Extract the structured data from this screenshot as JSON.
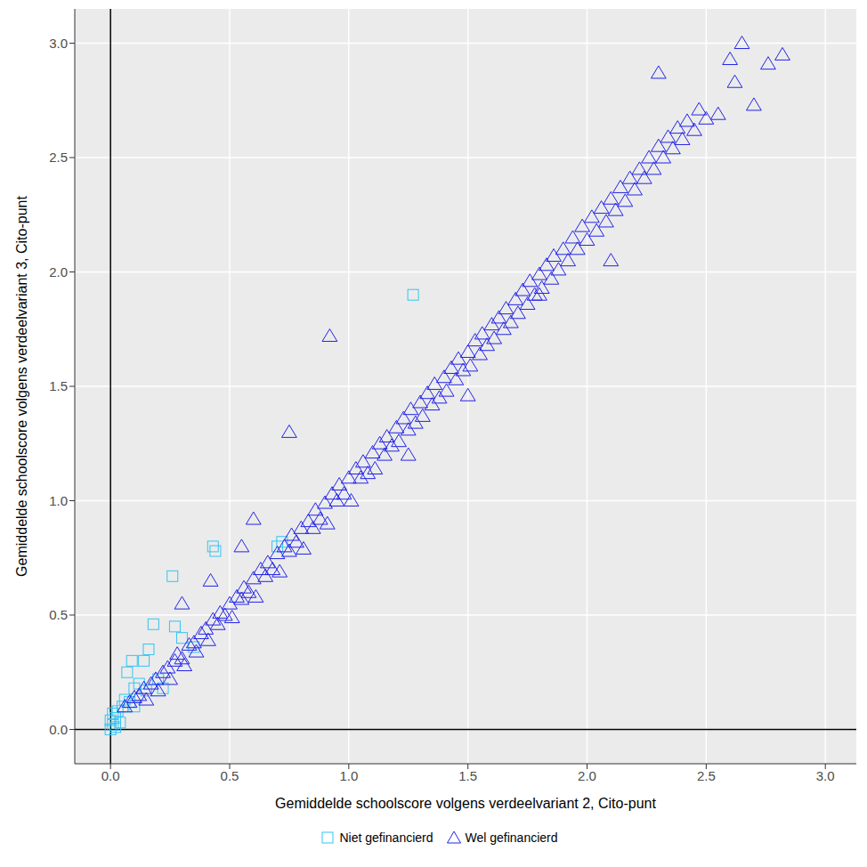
{
  "chart_data": {
    "type": "scatter",
    "x_label": "Gemiddelde schoolscore volgens verdeelvariant 2, Cito-punt",
    "y_label": "Gemiddelde schoolscore volgens verdeelvariant 3, Cito-punt",
    "xlim": [
      -0.15,
      3.13
    ],
    "ylim": [
      -0.15,
      3.15
    ],
    "xticks": [
      {
        "value": 0,
        "label": "0.0"
      },
      {
        "value": 0.5,
        "label": "0.5"
      },
      {
        "value": 1,
        "label": "1.0"
      },
      {
        "value": 1.5,
        "label": "1.5"
      },
      {
        "value": 2,
        "label": "2.0"
      },
      {
        "value": 2.5,
        "label": "2.5"
      },
      {
        "value": 3,
        "label": "3.0"
      }
    ],
    "yticks": [
      {
        "value": 0,
        "label": "0.0"
      },
      {
        "value": 0.5,
        "label": "0.5"
      },
      {
        "value": 1,
        "label": "1.0"
      },
      {
        "value": 1.5,
        "label": "1.5"
      },
      {
        "value": 2,
        "label": "2.0"
      },
      {
        "value": 2.5,
        "label": "2.5"
      },
      {
        "value": 3,
        "label": "3.0"
      }
    ],
    "grid": true,
    "legend": "bottom",
    "reference_lines": {
      "x": [
        0
      ],
      "y": [
        0
      ]
    },
    "series": [
      {
        "name": "Niet gefinancierd",
        "color": "#35C4F2",
        "marker": "square",
        "x": [
          0.0,
          0.01,
          0.02,
          0.03,
          0.05,
          0.04,
          0.06,
          0.08,
          0.1,
          0.12,
          0.14,
          0.16,
          0.18,
          0.2,
          0.22,
          0.26,
          0.27,
          0.3,
          0.35,
          0.43,
          0.44,
          0.7,
          0.72,
          1.27,
          0.02,
          0.0,
          0.01,
          0.07,
          0.09,
          0.1,
          0.15
        ],
        "y": [
          0.0,
          0.02,
          0.05,
          0.08,
          0.1,
          0.03,
          0.13,
          0.12,
          0.18,
          0.2,
          0.3,
          0.35,
          0.46,
          0.22,
          0.18,
          0.67,
          0.45,
          0.4,
          0.36,
          0.8,
          0.78,
          0.8,
          0.82,
          1.9,
          0.01,
          0.04,
          0.07,
          0.25,
          0.3,
          0.1,
          0.17
        ]
      },
      {
        "name": "Wel gefinancierd",
        "color": "#2424E8",
        "marker": "triangle",
        "x": [
          0.06,
          0.08,
          0.1,
          0.12,
          0.14,
          0.15,
          0.17,
          0.19,
          0.2,
          0.22,
          0.24,
          0.25,
          0.27,
          0.28,
          0.3,
          0.31,
          0.33,
          0.35,
          0.36,
          0.38,
          0.4,
          0.41,
          0.43,
          0.45,
          0.46,
          0.48,
          0.5,
          0.51,
          0.53,
          0.55,
          0.56,
          0.58,
          0.6,
          0.61,
          0.63,
          0.65,
          0.66,
          0.68,
          0.7,
          0.71,
          0.73,
          0.75,
          0.76,
          0.78,
          0.8,
          0.81,
          0.83,
          0.85,
          0.86,
          0.88,
          0.9,
          0.91,
          0.93,
          0.95,
          0.96,
          0.98,
          1.0,
          1.01,
          1.03,
          1.05,
          1.06,
          1.08,
          1.1,
          1.11,
          1.13,
          1.15,
          1.16,
          1.18,
          1.2,
          1.21,
          1.23,
          1.25,
          1.26,
          1.28,
          1.3,
          1.31,
          1.33,
          1.35,
          1.36,
          1.38,
          1.4,
          1.41,
          1.43,
          1.45,
          1.46,
          1.48,
          1.5,
          1.51,
          1.53,
          1.55,
          1.56,
          1.58,
          1.6,
          1.61,
          1.63,
          1.65,
          1.66,
          1.68,
          1.7,
          1.71,
          1.73,
          1.75,
          1.76,
          1.78,
          1.8,
          1.81,
          1.83,
          1.85,
          1.86,
          1.88,
          1.9,
          1.92,
          1.94,
          1.96,
          1.98,
          2.0,
          2.02,
          2.04,
          2.06,
          2.08,
          2.1,
          2.12,
          2.14,
          2.16,
          2.18,
          2.2,
          2.22,
          2.24,
          2.26,
          2.28,
          2.3,
          2.32,
          2.34,
          2.36,
          2.38,
          2.4,
          2.42,
          2.45,
          2.47,
          2.5,
          2.55,
          2.62,
          2.6,
          2.65,
          2.7,
          2.76,
          2.82,
          2.3,
          1.8,
          0.92,
          0.75,
          1.25,
          1.5,
          0.6,
          0.3,
          2.1,
          0.42,
          0.55
        ],
        "y": [
          0.1,
          0.12,
          0.14,
          0.15,
          0.18,
          0.13,
          0.2,
          0.22,
          0.17,
          0.25,
          0.27,
          0.22,
          0.3,
          0.33,
          0.31,
          0.28,
          0.37,
          0.38,
          0.34,
          0.42,
          0.44,
          0.39,
          0.48,
          0.46,
          0.51,
          0.5,
          0.55,
          0.49,
          0.58,
          0.57,
          0.62,
          0.6,
          0.66,
          0.58,
          0.7,
          0.67,
          0.73,
          0.7,
          0.77,
          0.69,
          0.8,
          0.78,
          0.85,
          0.82,
          0.88,
          0.79,
          0.91,
          0.88,
          0.96,
          0.92,
          0.99,
          0.9,
          1.03,
          1.0,
          1.07,
          1.03,
          1.1,
          1.0,
          1.14,
          1.1,
          1.17,
          1.12,
          1.21,
          1.14,
          1.25,
          1.2,
          1.28,
          1.24,
          1.32,
          1.26,
          1.36,
          1.31,
          1.4,
          1.34,
          1.43,
          1.37,
          1.47,
          1.42,
          1.51,
          1.45,
          1.54,
          1.48,
          1.58,
          1.53,
          1.62,
          1.57,
          1.65,
          1.59,
          1.7,
          1.64,
          1.73,
          1.68,
          1.77,
          1.71,
          1.8,
          1.75,
          1.84,
          1.78,
          1.88,
          1.82,
          1.92,
          1.86,
          1.96,
          1.9,
          1.99,
          1.93,
          2.03,
          1.97,
          2.07,
          2.01,
          2.1,
          2.05,
          2.15,
          2.1,
          2.2,
          2.14,
          2.24,
          2.18,
          2.28,
          2.22,
          2.32,
          2.27,
          2.37,
          2.31,
          2.41,
          2.36,
          2.45,
          2.41,
          2.5,
          2.45,
          2.55,
          2.5,
          2.59,
          2.54,
          2.63,
          2.58,
          2.66,
          2.62,
          2.71,
          2.67,
          2.69,
          2.83,
          2.93,
          3.0,
          2.73,
          2.91,
          2.95,
          2.87,
          1.9,
          1.72,
          1.3,
          1.2,
          1.46,
          0.92,
          0.55,
          2.05,
          0.65,
          0.8
        ]
      }
    ]
  }
}
